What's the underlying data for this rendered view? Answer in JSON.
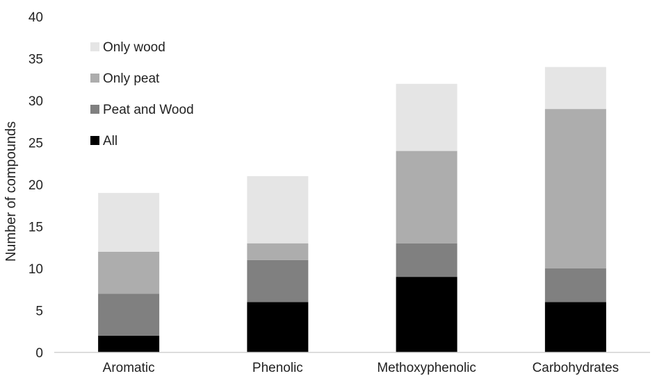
{
  "chart_data": {
    "type": "bar",
    "stacked": true,
    "title": "",
    "xlabel": "",
    "ylabel": "Number of compounds",
    "ylim": [
      0,
      40
    ],
    "yticks": [
      0,
      5,
      10,
      15,
      20,
      25,
      30,
      35,
      40
    ],
    "grid": false,
    "legend_position": "top-left",
    "categories": [
      "Aromatic",
      "Phenolic",
      "Methoxyphenolic",
      "Carbohydrates"
    ],
    "series": [
      {
        "name": "All",
        "color": "#000000",
        "values": [
          2,
          6,
          9,
          6
        ]
      },
      {
        "name": "Peat and Wood",
        "color": "#808080",
        "values": [
          5,
          5,
          4,
          4
        ]
      },
      {
        "name": "Only peat",
        "color": "#adadad",
        "values": [
          5,
          2,
          11,
          19
        ]
      },
      {
        "name": "Only wood",
        "color": "#e5e5e5",
        "values": [
          7,
          8,
          8,
          5
        ]
      }
    ],
    "legend_order": [
      "Only wood",
      "Only peat",
      "Peat and Wood",
      "All"
    ]
  }
}
